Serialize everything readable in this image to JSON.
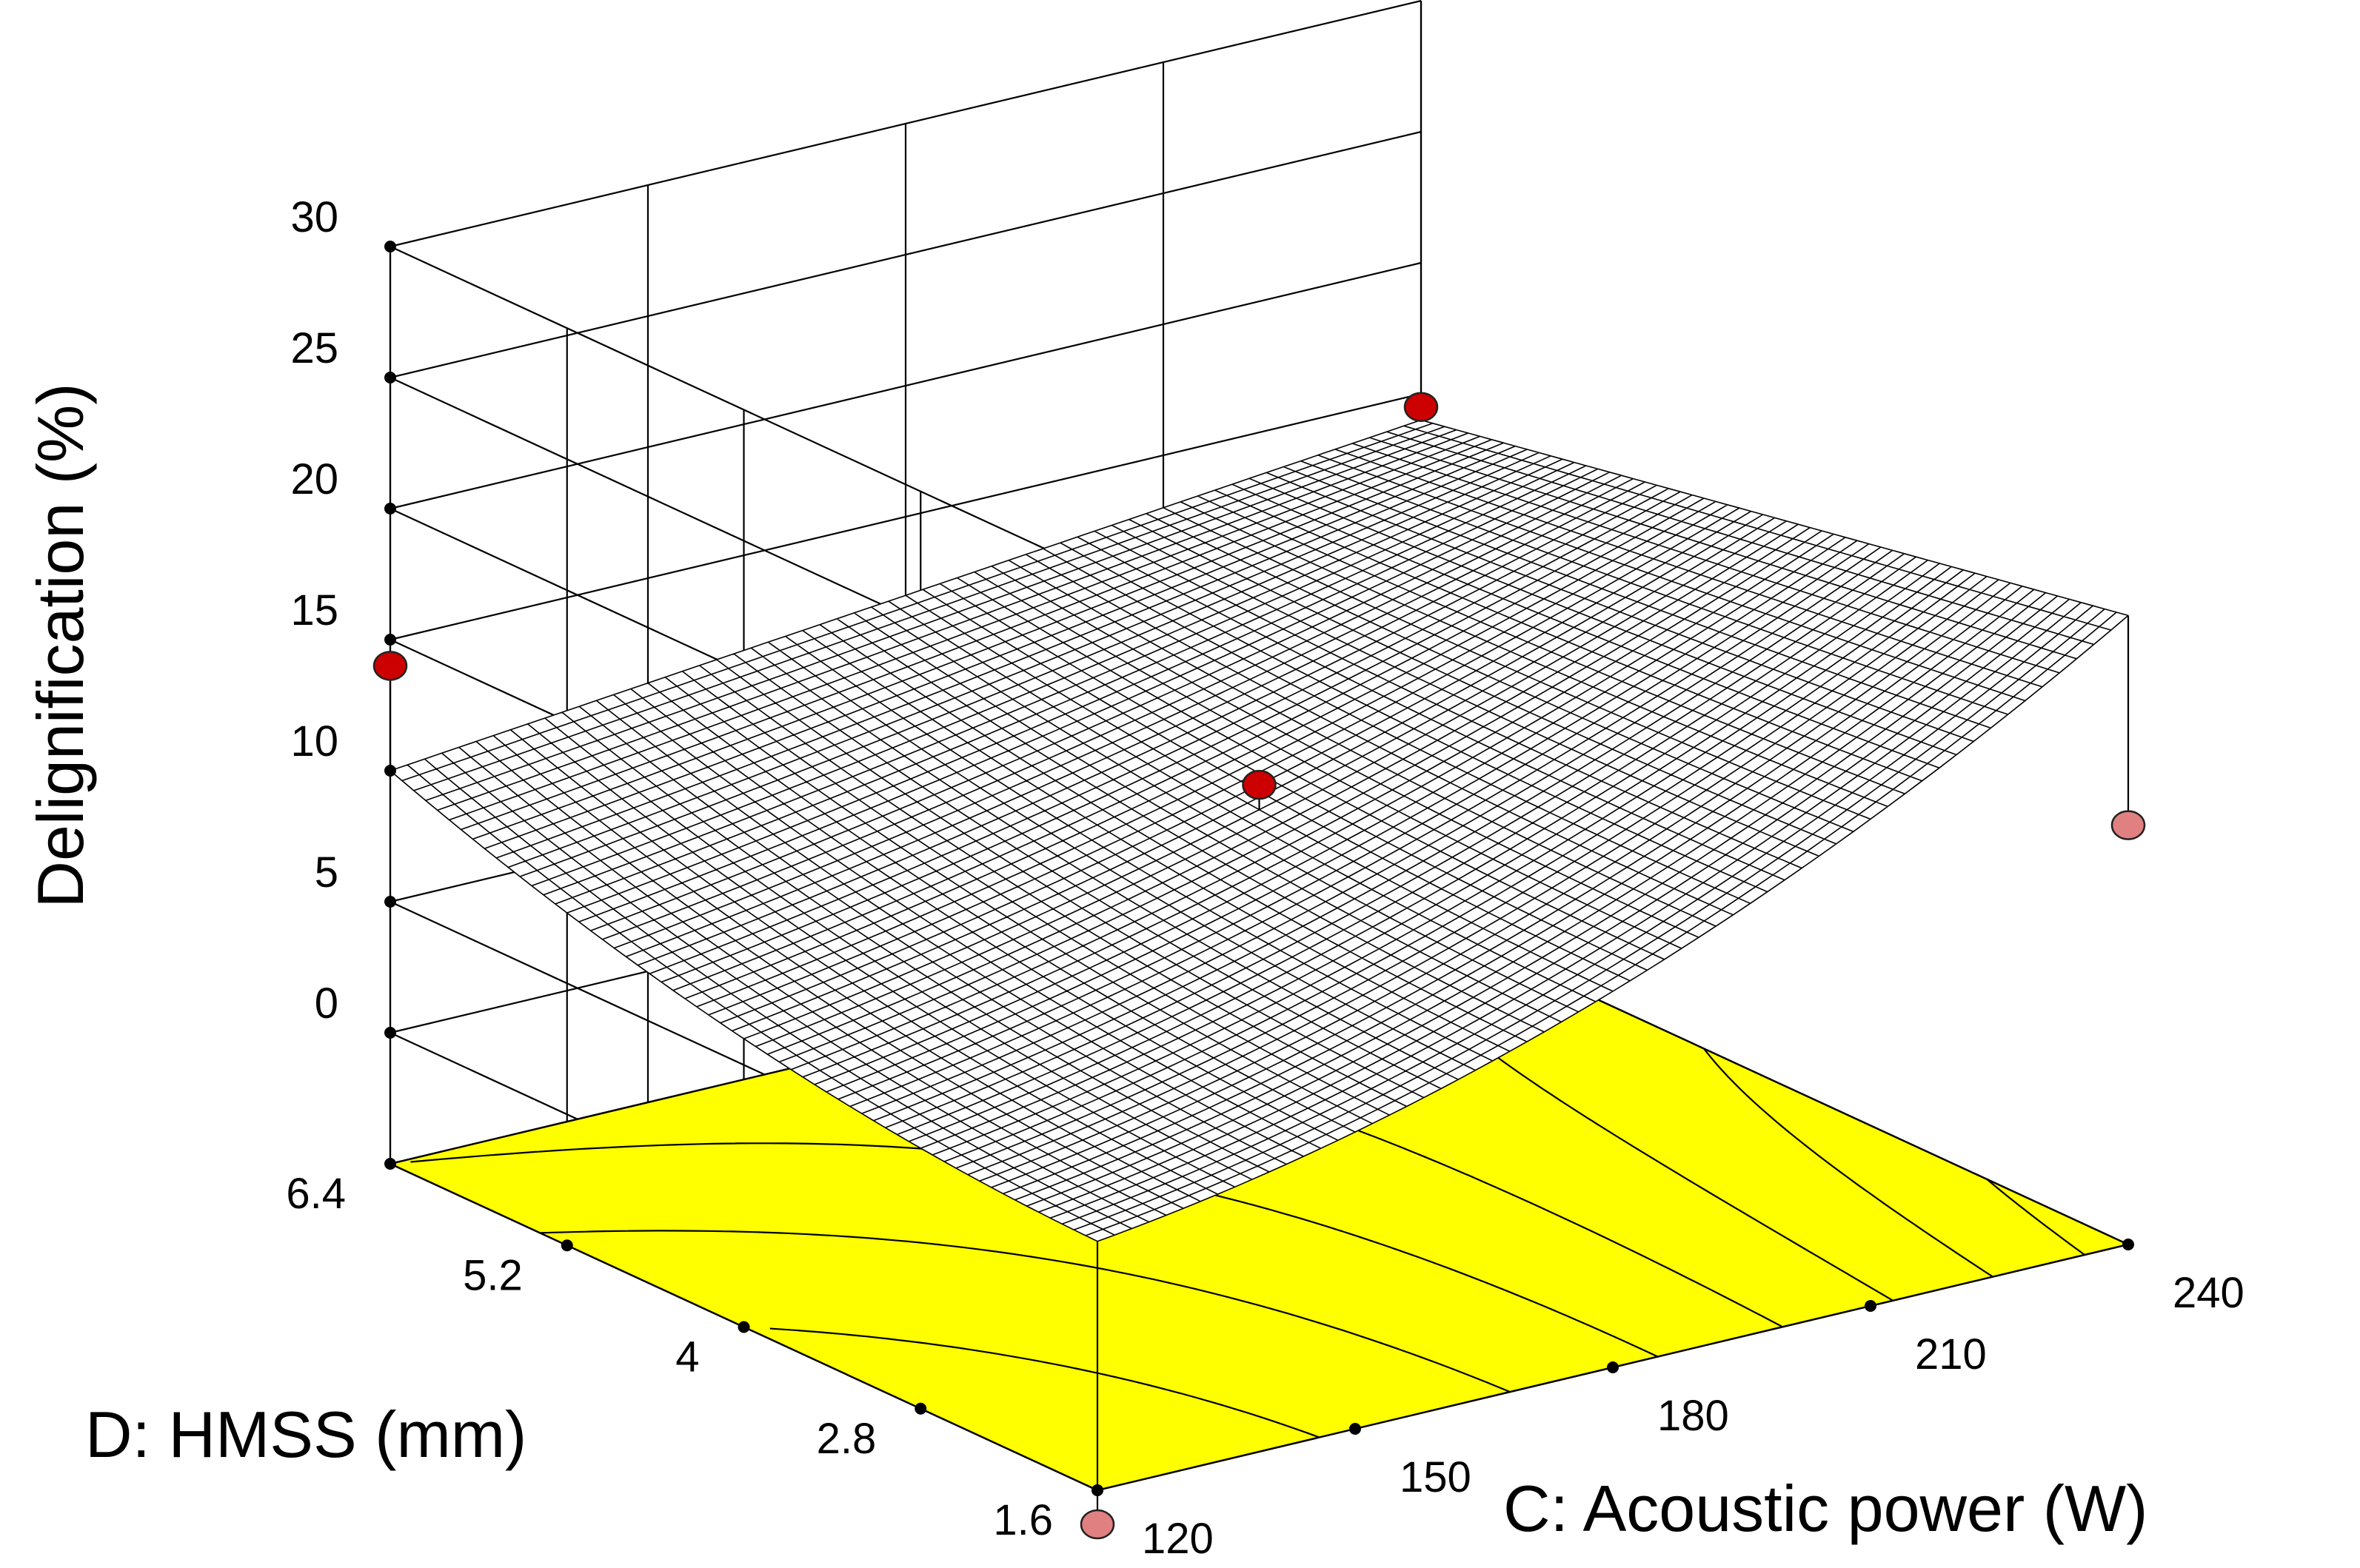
{
  "chart_data": {
    "type": "surface3d",
    "title": "",
    "zlabel": "Delignification (%)",
    "xlabel": "C: Acoustic power (W)",
    "ylabel": "D: HMSS (mm)",
    "x_ticks": [
      "120",
      "150",
      "180",
      "210",
      "240"
    ],
    "y_ticks": [
      "1.6",
      "2.8",
      "4",
      "5.2",
      "6.4"
    ],
    "z_ticks": [
      "0",
      "5",
      "10",
      "15",
      "20",
      "25",
      "30"
    ],
    "xlim": [
      120,
      240
    ],
    "ylim": [
      1.6,
      6.4
    ],
    "zlim": [
      -5,
      30
    ],
    "surface_corners": [
      {
        "x": 120,
        "y": 1.6,
        "z": 4.5
      },
      {
        "x": 240,
        "y": 1.6,
        "z": 19
      },
      {
        "x": 120,
        "y": 6.4,
        "z": 10
      },
      {
        "x": 240,
        "y": 6.4,
        "z": 14
      }
    ],
    "design_points": [
      {
        "x": 120,
        "y": 6.4,
        "z": 14,
        "position": "above"
      },
      {
        "x": 240,
        "y": 6.4,
        "z": 14.5,
        "position": "above"
      },
      {
        "x": 180,
        "y": 4,
        "z": 11,
        "position": "above"
      },
      {
        "x": 240,
        "y": 1.6,
        "z": 11,
        "position": "below"
      },
      {
        "x": 120,
        "y": 1.6,
        "z": -6.3,
        "position": "below"
      }
    ],
    "grid": true,
    "colors": {
      "surface_line": "#000000",
      "contour_floor": "#ffff00",
      "point_above": "#cc0000",
      "point_below": "#e08080"
    }
  }
}
